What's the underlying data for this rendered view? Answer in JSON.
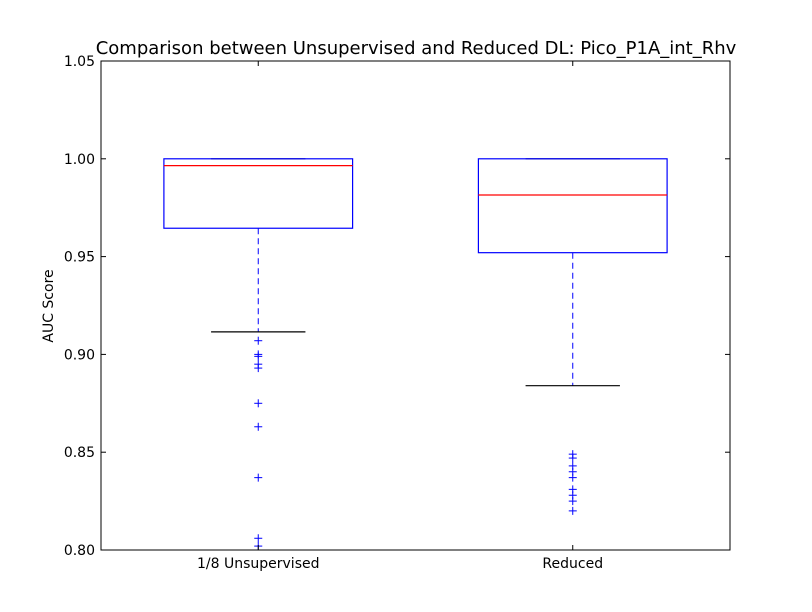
{
  "chart_data": {
    "type": "box",
    "title": "Comparison between Unsupervised and Reduced DL: Pico_P1A_int_Rhv",
    "xlabel": "",
    "ylabel": "AUC Score",
    "ylim": [
      0.8,
      1.05
    ],
    "yticks": [
      "0.80",
      "0.85",
      "0.90",
      "0.95",
      "1.00",
      "1.05"
    ],
    "grid": false,
    "categories": [
      "1/8 Unsupervised",
      "Reduced"
    ],
    "boxes": [
      {
        "label": "1/8 Unsupervised",
        "whisker_low": 0.9115,
        "q1": 0.9645,
        "median": 0.9965,
        "q3": 1.0,
        "whisker_high": 1.0,
        "outliers": [
          0.907,
          0.9,
          0.899,
          0.895,
          0.893,
          0.875,
          0.863,
          0.837,
          0.806,
          0.802
        ]
      },
      {
        "label": "Reduced",
        "whisker_low": 0.884,
        "q1": 0.952,
        "median": 0.9815,
        "q3": 1.0,
        "whisker_high": 1.0,
        "outliers": [
          0.849,
          0.847,
          0.843,
          0.84,
          0.837,
          0.831,
          0.828,
          0.825,
          0.82
        ]
      }
    ],
    "colors": {
      "box": "#0000ff",
      "median": "#ff0000",
      "cap": "#000000",
      "whisker": "#0000ff",
      "outlier": "#0000ff"
    }
  }
}
